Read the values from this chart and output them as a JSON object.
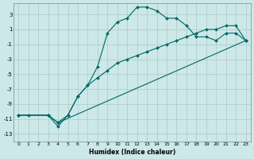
{
  "xlabel": "Humidex (Indice chaleur)",
  "background_color": "#cce8e8",
  "grid_color": "#b0c8c8",
  "line_color": "#006666",
  "xlim": [
    -0.5,
    23.5
  ],
  "ylim": [
    -14,
    4.5
  ],
  "xtick_labels": [
    "0",
    "1",
    "2",
    "3",
    "4",
    "5",
    "6",
    "7",
    "8",
    "9",
    "10",
    "11",
    "12",
    "13",
    "14",
    "15",
    "16",
    "17",
    "18",
    "19",
    "20",
    "21",
    "22",
    "23"
  ],
  "xtick_vals": [
    0,
    1,
    2,
    3,
    4,
    5,
    6,
    7,
    8,
    9,
    10,
    11,
    12,
    13,
    14,
    15,
    16,
    17,
    18,
    19,
    20,
    21,
    22,
    23
  ],
  "ytick_vals": [
    3,
    1,
    -1,
    -3,
    -5,
    -7,
    -9,
    -11,
    -13
  ],
  "curve1_x": [
    0,
    1,
    3,
    4,
    5,
    6,
    7,
    8,
    9,
    10,
    11,
    12,
    13,
    14,
    15,
    16,
    17,
    18,
    19,
    20,
    21,
    22,
    23
  ],
  "curve1_y": [
    -10.5,
    -10.5,
    -10.5,
    -12.0,
    -10.5,
    -8.0,
    -6.5,
    -4.0,
    0.5,
    2.0,
    2.5,
    4.0,
    4.0,
    3.5,
    2.5,
    2.5,
    1.5,
    0.0,
    0.0,
    -0.5,
    0.5,
    0.5,
    -0.5
  ],
  "curve2_x": [
    0,
    3,
    4,
    5,
    6,
    7,
    8,
    9,
    10,
    11,
    12,
    13,
    14,
    15,
    16,
    17,
    18,
    19,
    20,
    21,
    22,
    23
  ],
  "curve2_y": [
    -10.5,
    -10.5,
    -11.5,
    -10.5,
    -8.0,
    -6.5,
    -5.5,
    -4.5,
    -3.5,
    -3.0,
    -2.5,
    -2.0,
    -1.5,
    -1.0,
    -0.5,
    0.0,
    0.5,
    1.0,
    1.0,
    1.5,
    1.5,
    -0.5
  ],
  "curve3_x": [
    0,
    3,
    4,
    23
  ],
  "curve3_y": [
    -10.5,
    -10.5,
    -11.5,
    -0.5
  ]
}
